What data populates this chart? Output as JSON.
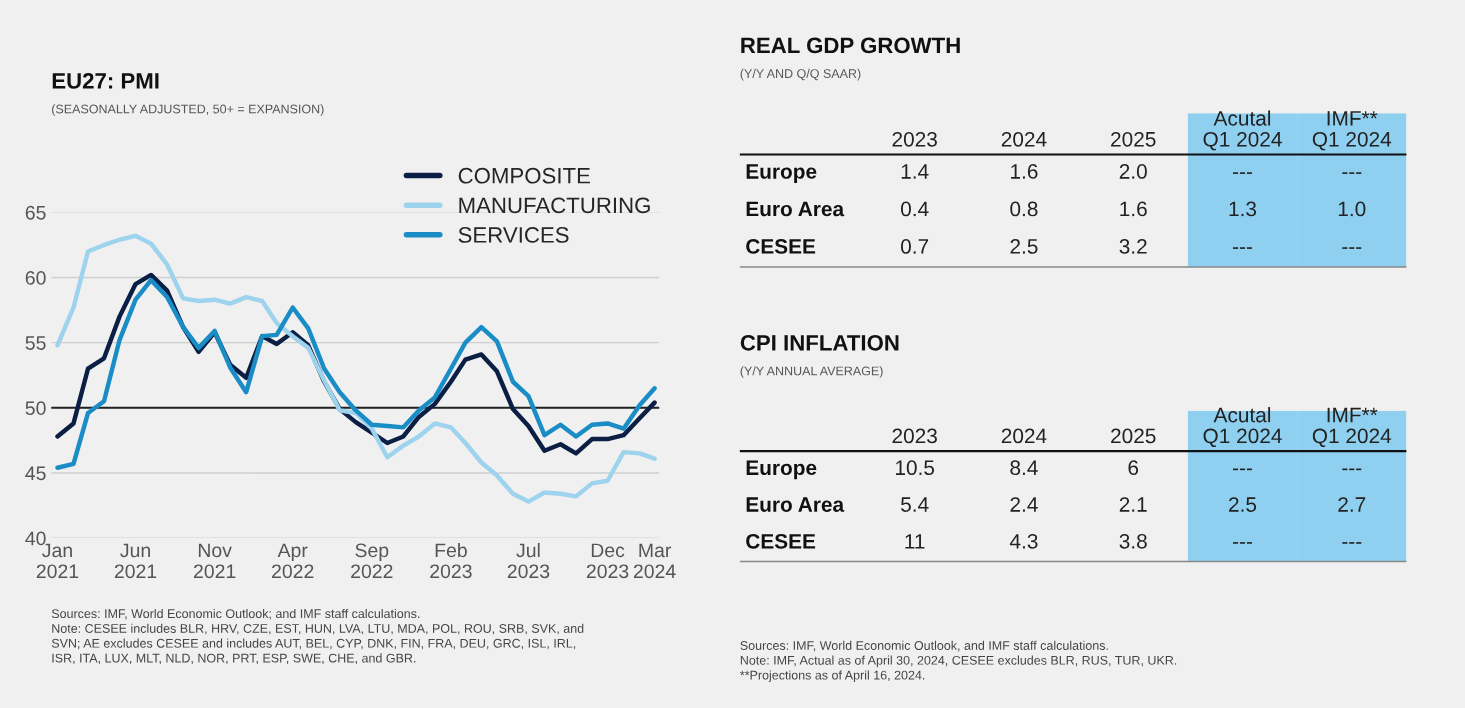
{
  "chart_data": [
    {
      "type": "line",
      "title": "EU27: PMI",
      "subtitle": "(SEASONALLY ADJUSTED, 50+ = EXPANSION)",
      "x": [
        "2021-01",
        "2021-02",
        "2021-03",
        "2021-04",
        "2021-05",
        "2021-06",
        "2021-07",
        "2021-08",
        "2021-09",
        "2021-10",
        "2021-11",
        "2021-12",
        "2022-01",
        "2022-02",
        "2022-03",
        "2022-04",
        "2022-05",
        "2022-06",
        "2022-07",
        "2022-08",
        "2022-09",
        "2022-10",
        "2022-11",
        "2022-12",
        "2023-01",
        "2023-02",
        "2023-03",
        "2023-04",
        "2023-05",
        "2023-06",
        "2023-07",
        "2023-08",
        "2023-09",
        "2023-10",
        "2023-11",
        "2023-12",
        "2024-01",
        "2024-02",
        "2024-03"
      ],
      "series": [
        {
          "name": "COMPOSITE",
          "color": "#0b1f45",
          "values": [
            47.8,
            48.8,
            53,
            53.8,
            57,
            59.5,
            60.2,
            59,
            56.2,
            54.3,
            55.8,
            53.3,
            52.3,
            55.5,
            54.9,
            55.8,
            54.8,
            52,
            49.9,
            48.9,
            48.1,
            47.3,
            47.8,
            49.3,
            50.3,
            52,
            53.7,
            54.1,
            52.8,
            49.9,
            48.6,
            46.7,
            47.2,
            46.5,
            47.6,
            47.6,
            47.9,
            49.2,
            50.4
          ]
        },
        {
          "name": "MANUFACTURING",
          "color": "#9ed3ee",
          "values": [
            54.8,
            57.7,
            62,
            62.5,
            62.9,
            63.2,
            62.6,
            61,
            58.4,
            58.2,
            58.3,
            58,
            58.5,
            58.2,
            56.5,
            55.5,
            54.6,
            52.1,
            49.8,
            49.6,
            48.4,
            46.2,
            47.1,
            47.8,
            48.8,
            48.5,
            47.3,
            45.8,
            44.8,
            43.4,
            42.8,
            43.5,
            43.4,
            43.2,
            44.2,
            44.4,
            46.6,
            46.5,
            46.1
          ]
        },
        {
          "name": "SERVICES",
          "color": "#1a8dc6",
          "values": [
            45.4,
            45.7,
            49.6,
            50.5,
            55.2,
            58.3,
            59.8,
            58.5,
            56.2,
            54.6,
            55.9,
            53.1,
            51.2,
            55.5,
            55.6,
            57.7,
            56.1,
            53,
            51.2,
            49.8,
            48.7,
            48.6,
            48.5,
            49.8,
            50.8,
            53,
            55,
            56.2,
            55.1,
            52,
            50.9,
            47.9,
            48.7,
            47.8,
            48.7,
            48.8,
            48.4,
            50.2,
            51.5
          ]
        }
      ],
      "xlim": [
        "2020-12-20",
        "2024-03-10"
      ],
      "xticks": [
        {
          "value": "2021-01",
          "label": "Jan\n2021"
        },
        {
          "value": "2021-06",
          "label": "Jun\n2021"
        },
        {
          "value": "2021-11",
          "label": "Nov\n2021"
        },
        {
          "value": "2022-04",
          "label": "Apr\n2022"
        },
        {
          "value": "2022-09",
          "label": "Sep\n2022"
        },
        {
          "value": "2023-02",
          "label": "Feb\n2023"
        },
        {
          "value": "2023-07",
          "label": "Jul\n2023"
        },
        {
          "value": "2023-12",
          "label": "Dec\n2023"
        },
        {
          "value": "2024-03",
          "label": "Mar\n2024"
        }
      ],
      "ylim": [
        40,
        65
      ],
      "yticks": [
        40,
        45,
        50,
        55,
        60,
        65
      ],
      "grid": "y",
      "legend": "top right",
      "ref_lines": [
        {
          "axis": "y",
          "value": 50,
          "color": "#222222"
        }
      ],
      "annotations": [
        "Sources: IMF, World Economic Outlook; and IMF staff calculations.\nNote: CESEE includes BLR, HRV, CZE, EST, HUN, LVA, LTU, MDA, POL, ROU, SRB, SVK, and\nSVN; AE excludes CESEE and includes AUT, BEL, CYP, DNK, FIN, FRA, DEU, GRC, ISL, IRL,\nISR, ITA, LUX, MLT, NLD, NOR, PRT, ESP, SWE, CHE, and GBR."
      ]
    },
    {
      "type": "other",
      "title": "REAL GDP GROWTH",
      "subtitle": "(Y/Y AND Q/Q SAAR)",
      "categories": [
        "2023",
        "2024",
        "2025",
        "Acutal\nQ1 2024",
        "IMF**\nQ1 2024"
      ],
      "colors": [
        null,
        null,
        null,
        "#8fd0f0",
        "#8fd0f0"
      ],
      "y_categories": [
        "Europe",
        "Euro Area",
        "CESEE"
      ],
      "cell_labels": [
        [
          "1.4",
          "1.6",
          "2.0",
          "---",
          "---"
        ],
        [
          "0.4",
          "0.8",
          "1.6",
          "1.3",
          "1.0"
        ],
        [
          "0.7",
          "2.5",
          "3.2",
          "---",
          "---"
        ]
      ]
    },
    {
      "type": "other",
      "title": "CPI INFLATION",
      "subtitle": "(Y/Y ANNUAL AVERAGE)",
      "categories": [
        "2023",
        "2024",
        "2025",
        "Acutal\nQ1 2024",
        "IMF**\nQ1 2024"
      ],
      "colors": [
        null,
        null,
        null,
        "#8fd0f0",
        "#8fd0f0"
      ],
      "y_categories": [
        "Europe",
        "Euro Area",
        "CESEE"
      ],
      "cell_labels": [
        [
          "10.5",
          "8.4",
          "6",
          "---",
          "---"
        ],
        [
          "5.4",
          "2.4",
          "2.1",
          "2.5",
          "2.7"
        ],
        [
          "11",
          "4.3",
          "3.8",
          "---",
          "---"
        ]
      ],
      "annotations": [
        "Sources: IMF, World Economic Outlook, and IMF staff calculations.\nNote: IMF, Actual as of April 30, 2024, CESEE excludes BLR, RUS, TUR, UKR.\n**Projections as of April 16, 2024."
      ]
    }
  ]
}
